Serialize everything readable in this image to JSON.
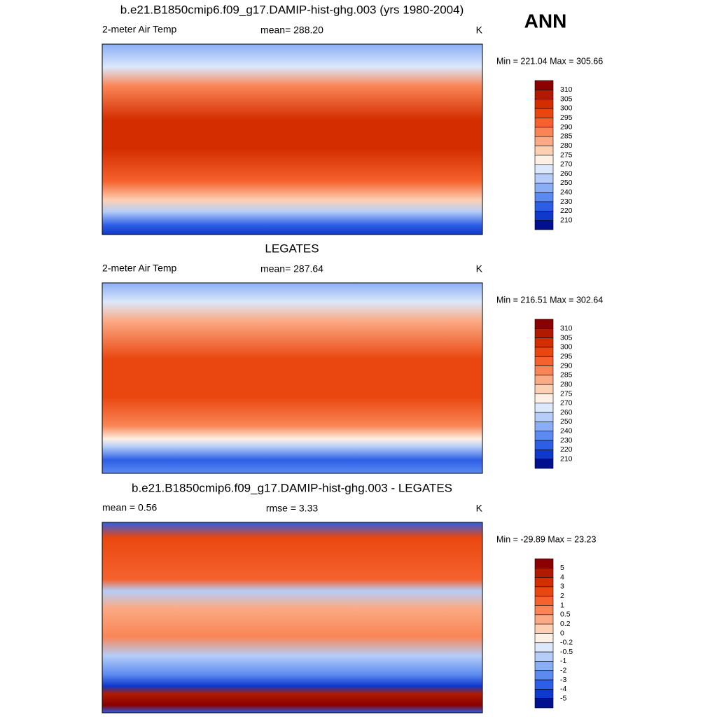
{
  "header": {
    "season": "ANN"
  },
  "panels": [
    {
      "title": "b.e21.B1850cmip6.f09_g17.DAMIP-hist-ghg.003 (yrs 1980-2004)",
      "left": "2-meter Air Temp",
      "center": "mean= 288.20",
      "right": "K",
      "minmax": "Min = 221.04 Max = 305.66",
      "colorbar": {
        "labels": [
          310,
          305,
          300,
          295,
          290,
          285,
          280,
          275,
          270,
          260,
          250,
          240,
          230,
          220,
          210
        ],
        "colors": [
          "#8b0000",
          "#b01b00",
          "#d42d00",
          "#ea4710",
          "#f5622e",
          "#f98556",
          "#fbaa85",
          "#fdd0b4",
          "#fdf0e4",
          "#dce8fb",
          "#b5cdf8",
          "#8aaef5",
          "#5c8af0",
          "#2d5fe6",
          "#0f38cc",
          "#00108f"
        ]
      }
    },
    {
      "title": "LEGATES",
      "left": "2-meter Air Temp",
      "center": "mean= 287.64",
      "right": "K",
      "minmax": "Min = 216.51 Max = 302.64",
      "colorbar": {
        "labels": [
          310,
          305,
          300,
          295,
          290,
          285,
          280,
          275,
          270,
          260,
          250,
          240,
          230,
          220,
          210
        ],
        "colors": [
          "#8b0000",
          "#b01b00",
          "#d42d00",
          "#ea4710",
          "#f5622e",
          "#f98556",
          "#fbaa85",
          "#fdd0b4",
          "#fdf0e4",
          "#dce8fb",
          "#b5cdf8",
          "#8aaef5",
          "#5c8af0",
          "#2d5fe6",
          "#0f38cc",
          "#00108f"
        ]
      }
    },
    {
      "title": "b.e21.B1850cmip6.f09_g17.DAMIP-hist-ghg.003 - LEGATES",
      "left": "mean =   0.56",
      "center": "rmse =   3.33",
      "right": "K",
      "minmax": "Min = -29.89 Max =  23.23",
      "colorbar": {
        "labels": [
          5,
          4,
          3,
          2,
          1,
          0.5,
          0.2,
          0,
          -0.2,
          -0.5,
          -1,
          -2,
          -3,
          -4,
          -5
        ],
        "colors": [
          "#8b0000",
          "#b01b00",
          "#d42d00",
          "#ea4710",
          "#f5622e",
          "#f98556",
          "#fbaa85",
          "#fdd0b4",
          "#fdf0e4",
          "#dce8fb",
          "#b5cdf8",
          "#8aaef5",
          "#5c8af0",
          "#2d5fe6",
          "#0f38cc",
          "#00108f"
        ]
      }
    }
  ]
}
